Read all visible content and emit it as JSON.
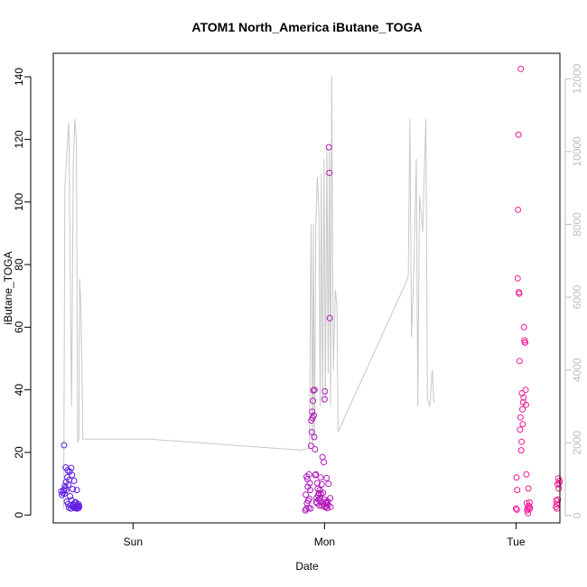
{
  "chart_data": {
    "type": "scatter",
    "title": "ATOM1 North_America iButane_TOGA",
    "xlabel": "Date",
    "ylabel": "iButane_TOGA",
    "x_unit": "hours since Sat 00:00",
    "xlim": [
      14.0,
      77.5
    ],
    "ylim": [
      -2.5,
      147.5
    ],
    "y_ticks": [
      0,
      20,
      40,
      60,
      80,
      100,
      120,
      140
    ],
    "x_ticks": [
      {
        "label": "Sun",
        "x": 24
      },
      {
        "label": "Mon",
        "x": 48
      },
      {
        "label": "Tue",
        "x": 72
      }
    ],
    "right_axis": {
      "ylim": [
        -200,
        12700
      ],
      "ticks": [
        0,
        2000,
        4000,
        6000,
        8000,
        10000,
        12000
      ],
      "color": "#bebebe"
    },
    "line_color": "#c8c8c8",
    "point_color_start": "#5a1ee6",
    "point_color_end": "#ff1493",
    "line": [
      [
        15.3,
        200
      ],
      [
        15.45,
        9000
      ],
      [
        15.7,
        10000
      ],
      [
        15.95,
        10800
      ],
      [
        16.1,
        7000
      ],
      [
        16.3,
        3000
      ],
      [
        16.5,
        9600
      ],
      [
        16.7,
        10900
      ],
      [
        16.9,
        10300
      ],
      [
        17.05,
        2000
      ],
      [
        17.2,
        2100
      ],
      [
        17.3,
        6500
      ],
      [
        17.45,
        5800
      ],
      [
        17.6,
        4000
      ],
      [
        17.7,
        2100
      ],
      [
        26.0,
        2100
      ],
      [
        45.0,
        1800
      ],
      [
        46.1,
        1850
      ],
      [
        46.3,
        8000
      ],
      [
        46.5,
        1900
      ],
      [
        46.6,
        8000
      ],
      [
        46.75,
        2100
      ],
      [
        46.9,
        8000
      ],
      [
        47.1,
        9300
      ],
      [
        47.3,
        8300
      ],
      [
        47.45,
        3000
      ],
      [
        47.6,
        9400
      ],
      [
        47.75,
        3100
      ],
      [
        47.95,
        9800
      ],
      [
        48.1,
        3200
      ],
      [
        48.3,
        10100
      ],
      [
        48.45,
        3900
      ],
      [
        48.6,
        10000
      ],
      [
        48.75,
        3000
      ],
      [
        48.9,
        12100
      ],
      [
        49.1,
        4000
      ],
      [
        49.35,
        6200
      ],
      [
        49.55,
        5800
      ],
      [
        49.7,
        2300
      ],
      [
        58.2,
        6400
      ],
      [
        58.5,
        6600
      ],
      [
        58.7,
        10900
      ],
      [
        58.9,
        4900
      ],
      [
        59.2,
        6800
      ],
      [
        59.5,
        9800
      ],
      [
        59.7,
        3000
      ],
      [
        59.9,
        8800
      ],
      [
        60.3,
        7800
      ],
      [
        60.7,
        10900
      ],
      [
        60.9,
        3200
      ],
      [
        61.2,
        3000
      ],
      [
        61.5,
        4000
      ],
      [
        61.7,
        3100
      ]
    ],
    "points": [
      [
        15.0,
        7.5
      ],
      [
        15.1,
        6.4
      ],
      [
        15.2,
        7.1
      ],
      [
        15.3,
        8.0
      ],
      [
        15.35,
        22.3
      ],
      [
        15.4,
        6.8
      ],
      [
        15.45,
        9.2
      ],
      [
        15.5,
        8.5
      ],
      [
        15.55,
        15.2
      ],
      [
        15.6,
        10.5
      ],
      [
        15.65,
        7.9
      ],
      [
        15.7,
        4.3
      ],
      [
        15.75,
        12.1
      ],
      [
        15.8,
        14.3
      ],
      [
        15.85,
        3.5
      ],
      [
        15.9,
        9.7
      ],
      [
        15.95,
        2.4
      ],
      [
        16.0,
        11.2
      ],
      [
        16.05,
        13.9
      ],
      [
        16.1,
        6.0
      ],
      [
        16.15,
        3.1
      ],
      [
        16.2,
        2.1
      ],
      [
        16.25,
        15.0
      ],
      [
        16.3,
        4.7
      ],
      [
        16.35,
        12.8
      ],
      [
        16.4,
        2.8
      ],
      [
        16.45,
        8.3
      ],
      [
        16.5,
        3.4
      ],
      [
        16.55,
        2.6
      ],
      [
        16.6,
        10.9
      ],
      [
        16.65,
        2.3
      ],
      [
        16.7,
        3.9
      ],
      [
        16.75,
        2.2
      ],
      [
        16.8,
        4.1
      ],
      [
        16.85,
        3.2
      ],
      [
        16.9,
        2.5
      ],
      [
        16.95,
        8.0
      ],
      [
        17.0,
        2.1
      ],
      [
        17.05,
        3.0
      ],
      [
        17.1,
        2.7
      ],
      [
        17.15,
        3.5
      ],
      [
        17.2,
        2.3
      ],
      [
        17.25,
        2.9
      ],
      [
        45.6,
        1.5
      ],
      [
        45.65,
        6.5
      ],
      [
        45.7,
        2.0
      ],
      [
        45.75,
        12.3
      ],
      [
        45.8,
        3.8
      ],
      [
        45.85,
        11.5
      ],
      [
        45.9,
        9.0
      ],
      [
        45.95,
        4.6
      ],
      [
        46.0,
        2.3
      ],
      [
        46.05,
        13.0
      ],
      [
        46.1,
        5.2
      ],
      [
        46.15,
        10.2
      ],
      [
        46.2,
        8.0
      ],
      [
        46.25,
        2.1
      ],
      [
        46.3,
        22.1
      ],
      [
        46.35,
        30.2
      ],
      [
        46.4,
        26.5
      ],
      [
        46.45,
        33.0
      ],
      [
        46.5,
        31.0
      ],
      [
        46.55,
        36.5
      ],
      [
        46.6,
        39.8
      ],
      [
        46.65,
        31.8
      ],
      [
        46.7,
        24.9
      ],
      [
        46.75,
        40.0
      ],
      [
        46.8,
        21.0
      ],
      [
        46.85,
        12.8
      ],
      [
        46.9,
        13.0
      ],
      [
        46.95,
        4.2
      ],
      [
        47.0,
        5.5
      ],
      [
        47.05,
        3.8
      ],
      [
        47.1,
        10.2
      ],
      [
        47.15,
        8.4
      ],
      [
        47.2,
        6.3
      ],
      [
        47.25,
        4.9
      ],
      [
        47.3,
        7.0
      ],
      [
        47.35,
        3.1
      ],
      [
        47.4,
        8.0
      ],
      [
        47.45,
        5.5
      ],
      [
        47.5,
        12.0
      ],
      [
        47.55,
        6.8
      ],
      [
        47.6,
        4.2
      ],
      [
        47.65,
        9.8
      ],
      [
        47.7,
        2.9
      ],
      [
        47.75,
        18.5
      ],
      [
        47.8,
        7.1
      ],
      [
        47.85,
        3.5
      ],
      [
        47.9,
        16.9
      ],
      [
        47.95,
        5.0
      ],
      [
        48.0,
        37.0
      ],
      [
        48.05,
        39.5
      ],
      [
        48.1,
        2.5
      ],
      [
        48.15,
        4.1
      ],
      [
        48.2,
        2.8
      ],
      [
        48.25,
        11.8
      ],
      [
        48.3,
        3.7
      ],
      [
        48.35,
        2.2
      ],
      [
        48.4,
        4.4
      ],
      [
        48.45,
        3.2
      ],
      [
        48.5,
        10.0
      ],
      [
        48.55,
        117.5
      ],
      [
        48.6,
        109.3
      ],
      [
        48.65,
        62.9
      ],
      [
        48.7,
        5.4
      ],
      [
        48.75,
        2.6
      ],
      [
        72.0,
        2.1
      ],
      [
        72.05,
        12.0
      ],
      [
        72.1,
        1.7
      ],
      [
        72.15,
        8.0
      ],
      [
        72.2,
        75.6
      ],
      [
        72.25,
        97.5
      ],
      [
        72.3,
        121.5
      ],
      [
        72.35,
        71.2
      ],
      [
        72.4,
        70.7
      ],
      [
        72.45,
        49.2
      ],
      [
        72.5,
        27.3
      ],
      [
        72.55,
        31.2
      ],
      [
        72.6,
        142.5
      ],
      [
        72.65,
        20.7
      ],
      [
        72.7,
        23.4
      ],
      [
        72.75,
        38.9
      ],
      [
        72.8,
        33.8
      ],
      [
        72.85,
        29.0
      ],
      [
        72.9,
        36.0
      ],
      [
        72.95,
        37.5
      ],
      [
        73.0,
        60.0
      ],
      [
        73.05,
        55.8
      ],
      [
        73.1,
        55.1
      ],
      [
        73.15,
        55.1
      ],
      [
        73.2,
        40.0
      ],
      [
        73.25,
        35.2
      ],
      [
        73.3,
        13.0
      ],
      [
        73.35,
        3.8
      ],
      [
        73.4,
        1.5
      ],
      [
        73.45,
        2.2
      ],
      [
        73.5,
        0.6
      ],
      [
        73.55,
        8.5
      ],
      [
        73.6,
        2.9
      ],
      [
        73.65,
        1.9
      ],
      [
        73.7,
        4.0
      ],
      [
        73.75,
        2.3
      ],
      [
        77.0,
        2.6
      ],
      [
        77.05,
        4.6
      ],
      [
        77.1,
        3.5
      ],
      [
        77.15,
        2.1
      ],
      [
        77.2,
        9.8
      ],
      [
        77.25,
        4.9
      ],
      [
        77.3,
        11.7
      ],
      [
        77.35,
        8.5
      ],
      [
        77.4,
        10.2
      ],
      [
        77.45,
        10.9
      ]
    ]
  }
}
